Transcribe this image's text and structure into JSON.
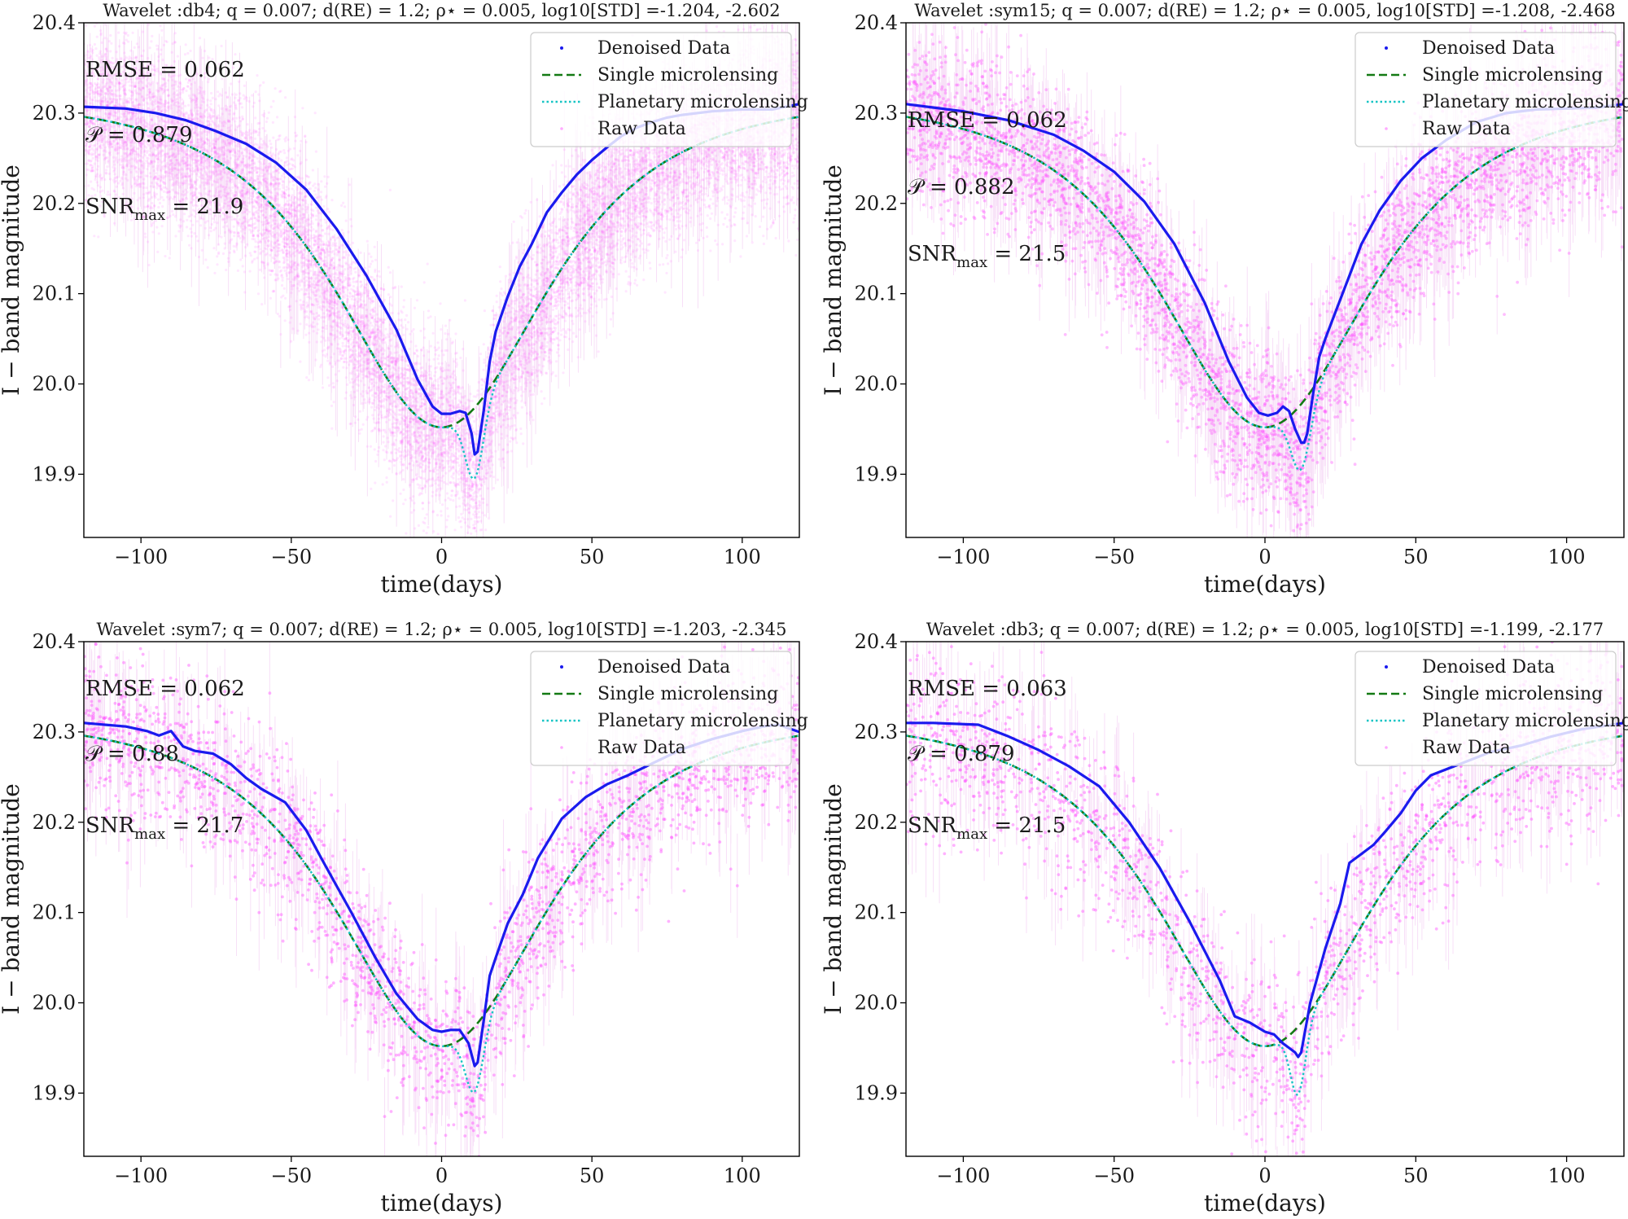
{
  "figure": {
    "xlabel": "time(days)",
    "ylabel": "I − band magnitude",
    "xticks": [
      -100,
      -50,
      0,
      50,
      100
    ],
    "xtick_labels": [
      "−100",
      "−50",
      "0",
      "50",
      "100"
    ],
    "yticks": [
      19.9,
      20.0,
      20.1,
      20.2,
      20.3,
      20.4
    ],
    "ytick_labels": [
      "19.9",
      "20.0",
      "20.1",
      "20.2",
      "20.3",
      "20.4"
    ],
    "legend": [
      "Denoised Data",
      "Single microlensing",
      "Planetary microlensing",
      "Raw Data"
    ],
    "stat_labels": {
      "rmse": "RMSE =",
      "p": "𝒫 =",
      "snr": "SNR",
      "snr_sub": "max",
      "snr_eq": "="
    },
    "colors": {
      "raw": "#ff55ff",
      "denoised": "#1a1aee",
      "single": "#137a13",
      "planetary": "#16c4c4"
    }
  },
  "chart_data": [
    {
      "type": "line",
      "title": "Wavelet :db4;  q =  0.007;  d(RE) =  1.2;  ρ⋆ =  0.005,  log10[STD] =-1.204, -2.602",
      "wavelet": "db4",
      "log10_std": "-1.204, -2.602",
      "rmse": "0.062",
      "p": "0.879",
      "snr_max": "21.9",
      "stats_pos": "top-left",
      "raw_points": 14000,
      "raw_scatter_sigma": 0.045,
      "xlim": [
        -119,
        119
      ],
      "ylim": [
        20.4,
        19.83
      ],
      "single_model": {
        "t0": 0,
        "peak_mag": 19.952,
        "base_mag": 20.318,
        "te": 45
      },
      "planetary_bump": {
        "t": 11,
        "dmag": -0.078,
        "width": 3
      },
      "denoised_line": {
        "x": [
          -119,
          -105,
          -95,
          -85,
          -75,
          -65,
          -55,
          -45,
          -35,
          -25,
          -15,
          -8,
          -3,
          0,
          3,
          6,
          8,
          10,
          11,
          12,
          14,
          16,
          18,
          22,
          26,
          30,
          35,
          40,
          45,
          50,
          55,
          60,
          65,
          70,
          75,
          80,
          90,
          100,
          110,
          119
        ],
        "y": [
          20.307,
          20.305,
          20.3,
          20.292,
          20.28,
          20.266,
          20.245,
          20.215,
          20.172,
          20.12,
          20.06,
          20.005,
          19.975,
          19.967,
          19.967,
          19.97,
          19.968,
          19.945,
          19.922,
          19.925,
          19.97,
          20.025,
          20.058,
          20.097,
          20.13,
          20.155,
          20.19,
          20.212,
          20.232,
          20.248,
          20.262,
          20.275,
          20.284,
          20.29,
          20.295,
          20.298,
          20.302,
          20.304,
          20.304,
          20.31
        ]
      }
    },
    {
      "type": "line",
      "title": "Wavelet :sym15;  q =  0.007;  d(RE) =  1.2;  ρ⋆ =  0.005,  log10[STD] =-1.208, -2.468",
      "wavelet": "sym15",
      "log10_std": "-1.208, -2.468",
      "rmse": "0.062",
      "p": "0.882",
      "snr_max": "21.5",
      "stats_pos": "middle-left",
      "raw_points": 4600,
      "raw_scatter_sigma": 0.045,
      "xlim": [
        -119,
        119
      ],
      "ylim": [
        20.4,
        19.83
      ],
      "single_model": {
        "t0": 0,
        "peak_mag": 19.952,
        "base_mag": 20.318,
        "te": 45
      },
      "planetary_bump": {
        "t": 12,
        "dmag": -0.072,
        "width": 3.2
      },
      "denoised_line": {
        "x": [
          -119,
          -100,
          -85,
          -70,
          -60,
          -50,
          -40,
          -30,
          -20,
          -12,
          -6,
          -2,
          1,
          4,
          6,
          8,
          10,
          12,
          13,
          14,
          16,
          18,
          20,
          24,
          28,
          32,
          38,
          45,
          52,
          60,
          70,
          80,
          90,
          100,
          110,
          119
        ],
        "y": [
          20.31,
          20.302,
          20.292,
          20.276,
          20.258,
          20.235,
          20.202,
          20.155,
          20.09,
          20.025,
          19.985,
          19.968,
          19.965,
          19.968,
          19.975,
          19.97,
          19.95,
          19.935,
          19.935,
          19.945,
          19.99,
          20.03,
          20.05,
          20.085,
          20.12,
          20.155,
          20.192,
          20.225,
          20.25,
          20.27,
          20.29,
          20.3,
          20.304,
          20.305,
          20.306,
          20.31
        ]
      }
    },
    {
      "type": "line",
      "title": "Wavelet :sym7;  q =  0.007;  d(RE) =  1.2;  ρ⋆ =  0.005,  log10[STD] =-1.203, -2.345",
      "wavelet": "sym7",
      "log10_std": "-1.203, -2.345",
      "rmse": "0.062",
      "p": "0.88",
      "snr_max": "21.7",
      "stats_pos": "top-left",
      "raw_points": 2500,
      "raw_scatter_sigma": 0.045,
      "xlim": [
        -119,
        119
      ],
      "ylim": [
        20.4,
        19.83
      ],
      "single_model": {
        "t0": 0,
        "peak_mag": 19.952,
        "base_mag": 20.318,
        "te": 45
      },
      "planetary_bump": {
        "t": 11,
        "dmag": -0.072,
        "width": 3
      },
      "denoised_line": {
        "x": [
          -119,
          -105,
          -98,
          -94,
          -90,
          -86,
          -82,
          -76,
          -70,
          -65,
          -60,
          -52,
          -45,
          -40,
          -35,
          -30,
          -22,
          -15,
          -8,
          -3,
          0,
          3,
          6,
          9,
          11,
          12,
          14,
          16,
          18,
          22,
          27,
          32,
          40,
          48,
          55,
          62,
          70,
          80,
          90,
          100,
          107,
          112,
          119
        ],
        "y": [
          20.31,
          20.306,
          20.301,
          20.296,
          20.301,
          20.284,
          20.279,
          20.276,
          20.264,
          20.249,
          20.237,
          20.222,
          20.191,
          20.16,
          20.13,
          20.1,
          20.05,
          20.01,
          19.982,
          19.97,
          19.968,
          19.97,
          19.97,
          19.955,
          19.93,
          19.934,
          19.98,
          20.03,
          20.05,
          20.088,
          20.12,
          20.16,
          20.204,
          20.228,
          20.242,
          20.252,
          20.265,
          20.281,
          20.292,
          20.301,
          20.306,
          20.308,
          20.3
        ]
      }
    },
    {
      "type": "line",
      "title": "Wavelet :db3;  q =  0.007;  d(RE) =  1.2;  ρ⋆ =  0.005,  log10[STD] =-1.199, -2.177",
      "wavelet": "db3",
      "log10_std": "-1.199, -2.177",
      "rmse": "0.063",
      "p": "0.879",
      "snr_max": "21.5",
      "stats_pos": "top-left",
      "raw_points": 2000,
      "raw_scatter_sigma": 0.05,
      "xlim": [
        -119,
        119
      ],
      "ylim": [
        20.4,
        19.83
      ],
      "single_model": {
        "t0": 0,
        "peak_mag": 19.952,
        "base_mag": 20.318,
        "te": 45
      },
      "planetary_bump": {
        "t": 11,
        "dmag": -0.075,
        "width": 2.5
      },
      "denoised_line": {
        "x": [
          -119,
          -110,
          -95,
          -85,
          -75,
          -65,
          -55,
          -45,
          -35,
          -25,
          -15,
          -10,
          -5,
          0,
          3,
          6,
          8,
          10,
          11,
          12,
          15,
          20,
          25,
          28,
          32,
          36,
          40,
          45,
          50,
          55,
          65,
          75,
          85,
          95,
          105,
          119
        ],
        "y": [
          20.31,
          20.31,
          20.308,
          20.295,
          20.28,
          20.262,
          20.24,
          20.2,
          20.15,
          20.09,
          20.025,
          19.985,
          19.978,
          19.968,
          19.965,
          19.955,
          19.95,
          19.945,
          19.94,
          19.945,
          20.0,
          20.06,
          20.11,
          20.155,
          20.165,
          20.175,
          20.19,
          20.21,
          20.235,
          20.252,
          20.265,
          20.278,
          20.285,
          20.295,
          20.303,
          20.31
        ]
      }
    }
  ]
}
